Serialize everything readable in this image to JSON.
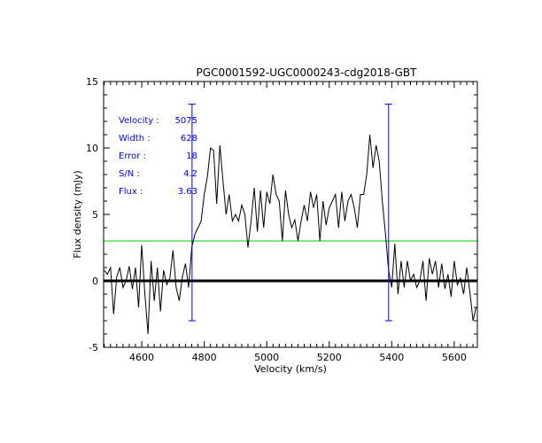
{
  "chart_data": {
    "type": "line",
    "title": "PGC0001592-UGC0000243-cdg2018-GBT",
    "xlabel": "Velocity (km/s)",
    "ylabel": "Flux density (mJy)",
    "xlim": [
      4478,
      5674
    ],
    "ylim": [
      -5,
      15
    ],
    "xticks": [
      4600,
      4800,
      5000,
      5200,
      5400,
      5600
    ],
    "yticks": [
      -5,
      0,
      5,
      10,
      15
    ],
    "grid": false,
    "colors": {
      "spectrum": "#000000",
      "markers": "#0000ff",
      "threshold": "#00cc00",
      "zero": "#000000",
      "stats": "#0000ff"
    },
    "zero_line": 0,
    "threshold_level": 3.0,
    "velocity_markers": [
      {
        "x": 4761,
        "ymin": -3.0,
        "ymax": 13.3
      },
      {
        "x": 5390,
        "ymin": -3.0,
        "ymax": 13.3
      }
    ],
    "stats": [
      {
        "label": "Velocity :",
        "value": "5075"
      },
      {
        "label": "Width :",
        "value": "628"
      },
      {
        "label": "Error :",
        "value": "18"
      },
      {
        "label": "S/N :",
        "value": "4.2"
      },
      {
        "label": "Flux :",
        "value": "3.63"
      }
    ],
    "series": [
      {
        "name": "spectrum",
        "x0": 4480,
        "dx": 10,
        "values": [
          0.8,
          0.5,
          1.0,
          -2.5,
          0.3,
          1.0,
          -0.5,
          0.0,
          1.1,
          -0.6,
          1.0,
          -2.0,
          2.7,
          -1.0,
          -4.0,
          1.5,
          -1.5,
          1.0,
          -2.3,
          0.8,
          -0.3,
          0.2,
          2.3,
          -0.5,
          -1.5,
          0.3,
          1.3,
          -0.5,
          2.5,
          3.5,
          4.0,
          4.5,
          6.5,
          7.8,
          10.0,
          9.8,
          5.8,
          10.2,
          7.5,
          5.0,
          6.5,
          4.5,
          5.0,
          4.5,
          5.7,
          5.0,
          2.5,
          4.5,
          7.0,
          3.7,
          6.8,
          4.0,
          6.7,
          5.8,
          8.0,
          6.5,
          6.0,
          3.0,
          6.8,
          5.0,
          4.0,
          4.6,
          3.0,
          4.5,
          5.7,
          4.5,
          6.7,
          5.5,
          6.5,
          3.0,
          6.0,
          4.2,
          5.5,
          6.0,
          6.5,
          4.0,
          6.7,
          4.5,
          6.0,
          6.5,
          5.5,
          4.0,
          6.5,
          6.5,
          8.0,
          11.0,
          8.5,
          10.2,
          9.0,
          6.0,
          3.5,
          0.8,
          -0.5,
          2.8,
          -1.0,
          1.5,
          -0.5,
          1.5,
          0.0,
          0.5,
          -0.5,
          0.0,
          1.5,
          -1.5,
          1.7,
          0.5,
          1.5,
          -0.5,
          1.3,
          -0.6,
          0.5,
          -1.2,
          1.5,
          -0.3,
          0.2,
          -1.0,
          1.0,
          -0.8,
          -3.0,
          -2.0
        ]
      }
    ]
  }
}
